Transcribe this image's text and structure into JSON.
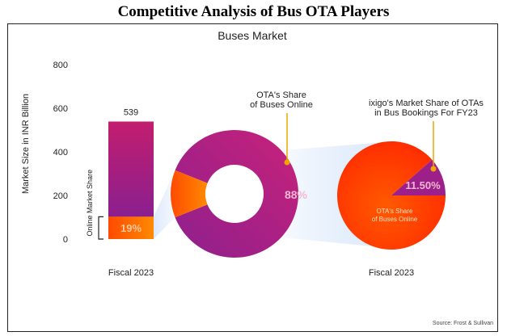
{
  "document_title": "Competitive Analysis of Bus OTA Players",
  "colors": {
    "bar_top": "#c21e6f",
    "bar_bottom": "#8a1f8f",
    "orange": "#ff5a00",
    "orange_light": "#ff8a00",
    "purple": "#9c1f8a",
    "magenta": "#c4217a",
    "callout": "#f0a500"
  },
  "chart_data": {
    "type": "bar",
    "title": "Buses Market",
    "ylabel": "Market Size in INR Billion",
    "ylim": [
      0,
      800
    ],
    "yticks": [
      "800",
      "600",
      "400",
      "200",
      "0"
    ],
    "bar": {
      "category": "Fiscal 2023",
      "value": 539,
      "value_label": "539",
      "online_share_pct": 19,
      "online_share_label": "19%",
      "bracket_label": "Online Market Share"
    },
    "donut": {
      "title_line1": "OTA's Share",
      "title_line2": "of Buses Online",
      "value_pct": 88,
      "value_label": "88%"
    },
    "pie": {
      "category": "Fiscal 2023",
      "title_line1": "ixigo's Market Share of OTAs",
      "title_line2": "in Bus Bookings For FY23",
      "value_pct": 11.5,
      "value_label": "11.50%",
      "rest_label_line1": "OTA's Share",
      "rest_label_line2": "of Buses Online"
    },
    "source": "Source: Frost & Sullivan"
  }
}
